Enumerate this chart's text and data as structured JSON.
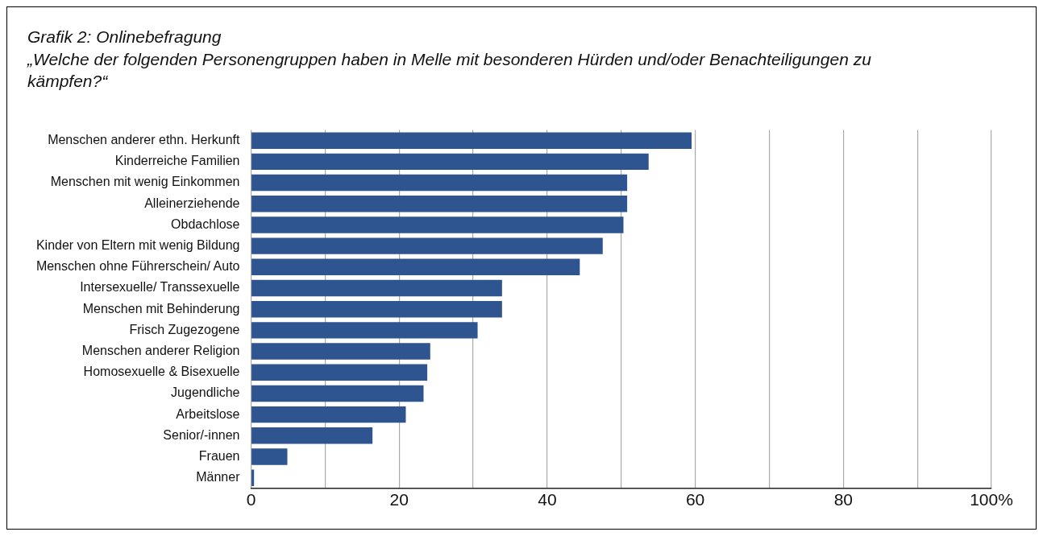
{
  "chart_data": {
    "type": "bar",
    "orientation": "horizontal",
    "title": "Grafik 2: Onlinebefragung",
    "subtitle": "„Welche der folgenden Personengruppen haben in Melle mit besonderen Hürden und/oder Benachteiligungen zu kämpfen?“",
    "categories": [
      "Menschen anderer ethn. Herkunft",
      "Kinderreiche Familien",
      "Menschen mit wenig Einkommen",
      "Alleinerziehende",
      "Obdachlose",
      "Kinder von Eltern mit wenig Bildung",
      "Menschen ohne Führerschein/ Auto",
      "Intersexuelle/ Transsexuelle",
      "Menschen mit Behinderung",
      "Frisch Zugezogene",
      "Menschen anderer Religion",
      "Homosexuelle & Bisexuelle",
      "Jugendliche",
      "Arbeitslose",
      "Senior/-innen",
      "Frauen",
      "Männer"
    ],
    "values": [
      59.5,
      53.7,
      50.8,
      50.8,
      50.3,
      47.5,
      44.4,
      33.9,
      33.9,
      30.6,
      24.2,
      23.8,
      23.3,
      20.9,
      16.4,
      4.9,
      0.4
    ],
    "color": "#2e5590",
    "xlim": [
      0,
      100
    ],
    "xticks": [
      0,
      {
        "value": 10,
        "label": null
      },
      20,
      {
        "value": 30,
        "label": null
      },
      40,
      {
        "value": 50,
        "label": null
      },
      60,
      {
        "value": 70,
        "label": null
      },
      80,
      {
        "value": 90,
        "label": null
      },
      {
        "value": 100,
        "label": "100%"
      }
    ],
    "grid": "x",
    "legend": false
  }
}
